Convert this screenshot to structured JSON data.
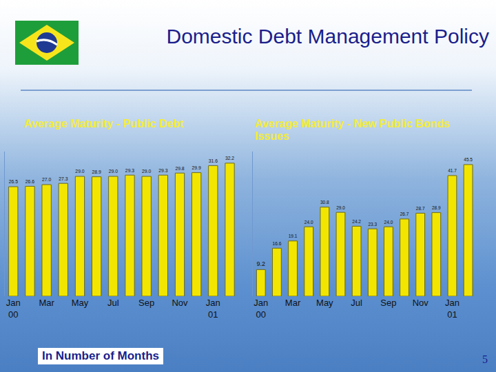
{
  "header": {
    "title": "Domestic Debt Management Policy"
  },
  "chart_data": [
    {
      "type": "bar",
      "title": "Average Maturity - Public Debt",
      "categories": [
        "Jan 00",
        null,
        "Mar",
        null,
        "May",
        null,
        "Jul",
        null,
        "Sep",
        null,
        "Nov",
        null,
        "Jan 01",
        null
      ],
      "values": [
        26.5,
        26.6,
        27.0,
        27.3,
        29.0,
        28.9,
        29.0,
        29.3,
        29.0,
        29.3,
        29.8,
        29.9,
        31.6,
        32.2
      ],
      "value_labels": [
        "26.5",
        "26.6",
        "27.0",
        "27.3",
        "29.0",
        "28.9",
        "29.0",
        "29.3",
        "29.0",
        "29.3",
        "29.8",
        "29.9",
        "31.6",
        "32.2"
      ],
      "color": "#f2e600",
      "ylim": [
        0,
        35
      ],
      "data_labels": true,
      "tick_labels": "x",
      "grid": false
    },
    {
      "type": "bar",
      "title": "Average Maturity - New Public Bonds Issues",
      "categories": [
        "Jan 00",
        null,
        "Mar",
        null,
        "May",
        null,
        "Jul",
        null,
        "Sep",
        null,
        "Nov",
        null,
        "Jan 01",
        null
      ],
      "values": [
        9.2,
        16.6,
        19.1,
        24.0,
        30.8,
        29.0,
        24.2,
        23.3,
        24.0,
        26.7,
        28.7,
        28.9,
        41.7,
        45.5
      ],
      "value_labels": [
        "9.2",
        "16.6",
        "19.1",
        "24.0",
        "30.8",
        "29.0",
        "24.2",
        "23.3",
        "24.0",
        "26.7",
        "28.7",
        "28.9",
        "41.7",
        "45.5"
      ],
      "color": "#f2e600",
      "ylim": [
        0,
        50
      ],
      "data_labels": true,
      "tick_labels": "x",
      "grid": false
    }
  ],
  "footer": {
    "note": "In Number of Months",
    "page": 5
  }
}
